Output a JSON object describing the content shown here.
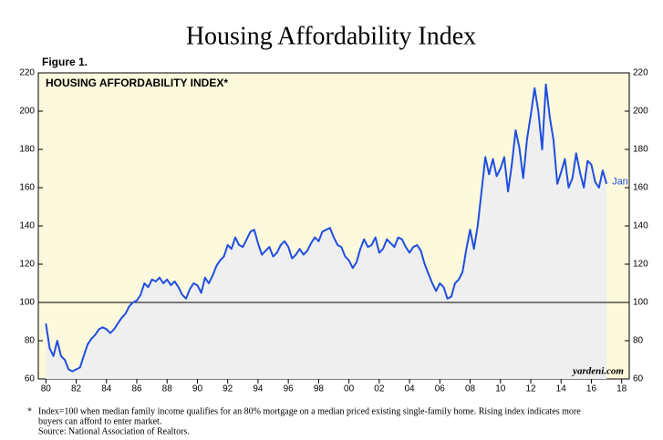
{
  "chart_data": {
    "type": "line",
    "title": "Housing Affordability Index",
    "figure_label": "Figure 1.",
    "inner_title": "HOUSING AFFORDABILITY INDEX*",
    "watermark": "yardeni.com",
    "end_label": "Jan",
    "reference_line": 100,
    "footnote_marker": "*",
    "footnote": [
      "Index=100 when median family income qualifies for an 80% mortgage on a median priced existing single-family home. Rising index indicates more",
      "buyers can afford to enter market.",
      "Source: National Association of Realtors."
    ],
    "xlim": [
      1979.5,
      2018.5
    ],
    "xticks": [
      {
        "value": 1980,
        "label": "80"
      },
      {
        "value": 1982,
        "label": "82"
      },
      {
        "value": 1984,
        "label": "84"
      },
      {
        "value": 1986,
        "label": "86"
      },
      {
        "value": 1988,
        "label": "88"
      },
      {
        "value": 1990,
        "label": "90"
      },
      {
        "value": 1992,
        "label": "92"
      },
      {
        "value": 1994,
        "label": "94"
      },
      {
        "value": 1996,
        "label": "96"
      },
      {
        "value": 1998,
        "label": "98"
      },
      {
        "value": 2000,
        "label": "00"
      },
      {
        "value": 2002,
        "label": "02"
      },
      {
        "value": 2004,
        "label": "04"
      },
      {
        "value": 2006,
        "label": "06"
      },
      {
        "value": 2008,
        "label": "08"
      },
      {
        "value": 2010,
        "label": "10"
      },
      {
        "value": 2012,
        "label": "12"
      },
      {
        "value": 2014,
        "label": "14"
      },
      {
        "value": 2016,
        "label": "16"
      },
      {
        "value": 2018,
        "label": "18"
      }
    ],
    "ylim": [
      60,
      220
    ],
    "yticks": [
      60,
      80,
      100,
      120,
      140,
      160,
      180,
      200,
      220
    ],
    "series": [
      {
        "color": "#1f4fe0",
        "x": [
          1980,
          1980.25,
          1980.5,
          1980.75,
          1981,
          1981.25,
          1981.5,
          1981.75,
          1982,
          1982.25,
          1982.5,
          1982.75,
          1983,
          1983.25,
          1983.5,
          1983.75,
          1984,
          1984.25,
          1984.5,
          1984.75,
          1985,
          1985.25,
          1985.5,
          1985.75,
          1986,
          1986.25,
          1986.5,
          1986.75,
          1987,
          1987.25,
          1987.5,
          1987.75,
          1988,
          1988.25,
          1988.5,
          1988.75,
          1989,
          1989.25,
          1989.5,
          1989.75,
          1990,
          1990.25,
          1990.5,
          1990.75,
          1991,
          1991.25,
          1991.5,
          1991.75,
          1992,
          1992.25,
          1992.5,
          1992.75,
          1993,
          1993.25,
          1993.5,
          1993.75,
          1994,
          1994.25,
          1994.5,
          1994.75,
          1995,
          1995.25,
          1995.5,
          1995.75,
          1996,
          1996.25,
          1996.5,
          1996.75,
          1997,
          1997.25,
          1997.5,
          1997.75,
          1998,
          1998.25,
          1998.5,
          1998.75,
          1999,
          1999.25,
          1999.5,
          1999.75,
          2000,
          2000.25,
          2000.5,
          2000.75,
          2001,
          2001.25,
          2001.5,
          2001.75,
          2002,
          2002.25,
          2002.5,
          2002.75,
          2003,
          2003.25,
          2003.5,
          2003.75,
          2004,
          2004.25,
          2004.5,
          2004.75,
          2005,
          2005.25,
          2005.5,
          2005.75,
          2006,
          2006.25,
          2006.5,
          2006.75,
          2007,
          2007.25,
          2007.5,
          2007.75,
          2008,
          2008.25,
          2008.5,
          2008.75,
          2009,
          2009.25,
          2009.5,
          2009.75,
          2010,
          2010.25,
          2010.5,
          2010.75,
          2011,
          2011.25,
          2011.5,
          2011.75,
          2012,
          2012.25,
          2012.5,
          2012.75,
          2013,
          2013.25,
          2013.5,
          2013.75,
          2014,
          2014.25,
          2014.5,
          2014.75,
          2015,
          2015.25,
          2015.5,
          2015.75,
          2016,
          2016.25,
          2016.5,
          2016.75,
          2017
        ],
        "values": [
          89,
          76,
          72,
          80,
          72,
          70,
          65,
          64,
          65,
          66,
          72,
          78,
          81,
          83,
          86,
          87,
          86,
          84,
          86,
          89,
          92,
          94,
          98,
          100,
          101,
          104,
          110,
          108,
          112,
          111,
          113,
          110,
          112,
          109,
          111,
          108,
          104,
          102,
          107,
          110,
          109,
          105,
          113,
          110,
          114,
          119,
          122,
          124,
          130,
          128,
          134,
          130,
          129,
          133,
          137,
          138,
          131,
          125,
          127,
          129,
          124,
          126,
          130,
          132,
          129,
          123,
          125,
          128,
          125,
          127,
          131,
          134,
          132,
          137,
          138,
          139,
          134,
          130,
          129,
          124,
          122,
          118,
          121,
          128,
          133,
          129,
          130,
          134,
          126,
          128,
          133,
          131,
          129,
          134,
          133,
          129,
          126,
          129,
          130,
          127,
          120,
          115,
          110,
          106,
          110,
          108,
          102,
          103,
          110,
          112,
          116,
          128,
          138,
          128,
          140,
          158,
          176,
          167,
          175,
          166,
          170,
          176,
          158,
          172,
          190,
          181,
          165,
          185,
          198,
          212,
          200,
          180,
          214,
          197,
          185,
          162,
          168,
          175,
          160,
          165,
          178,
          168,
          160,
          174,
          172,
          163,
          160,
          169,
          162
        ]
      }
    ]
  }
}
